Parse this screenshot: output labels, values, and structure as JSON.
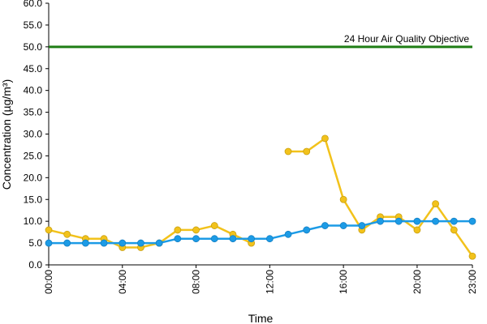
{
  "chart_data": {
    "type": "line",
    "title": "",
    "xlabel": "Time",
    "ylabel": "Concentration (µg/m³)",
    "ylim": [
      0,
      60
    ],
    "yticks": [
      0,
      5,
      10,
      15,
      20,
      25,
      30,
      35,
      40,
      45,
      50,
      55,
      60
    ],
    "ytick_labels": [
      "0.0",
      "5.0",
      "10.0",
      "15.0",
      "20.0",
      "25.0",
      "30.0",
      "35.0",
      "40.0",
      "45.0",
      "50.0",
      "55.0",
      "60.0"
    ],
    "xlim": [
      0,
      23
    ],
    "xticks": [
      0,
      4,
      8,
      12,
      16,
      20,
      23
    ],
    "xtick_labels": [
      "00:00",
      "04:00",
      "08:00",
      "12:00",
      "16:00",
      "20:00",
      "23:00"
    ],
    "grid": false,
    "legend": "none",
    "x": [
      0,
      1,
      2,
      3,
      4,
      5,
      6,
      7,
      8,
      9,
      10,
      11,
      12,
      13,
      14,
      15,
      16,
      17,
      18,
      19,
      20,
      21,
      22,
      23
    ],
    "series": [
      {
        "color": "#f2c21b",
        "values": [
          8,
          7,
          6,
          6,
          4,
          4,
          5,
          8,
          8,
          9,
          7,
          5,
          null,
          26,
          26,
          29,
          15,
          8,
          11,
          11,
          8,
          14,
          8,
          2
        ]
      },
      {
        "color": "#1c9be6",
        "values": [
          5,
          5,
          5,
          5,
          5,
          5,
          5,
          6,
          6,
          6,
          6,
          6,
          6,
          7,
          8,
          9,
          9,
          9,
          10,
          10,
          10,
          10,
          10,
          10
        ]
      }
    ],
    "reference_line": {
      "label": "24 Hour Air Quality Objective",
      "value": 50,
      "color": "#1e7d14"
    }
  }
}
